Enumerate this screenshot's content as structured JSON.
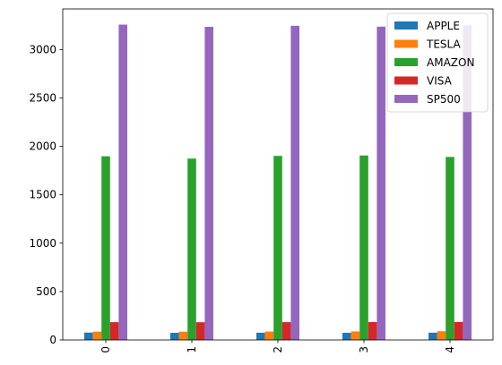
{
  "chart_data": {
    "type": "bar",
    "title": "",
    "xlabel": "",
    "ylabel": "",
    "categories": [
      "0",
      "1",
      "2",
      "3",
      "4"
    ],
    "ylim": [
      0,
      3420
    ],
    "yticks": [
      0,
      500,
      1000,
      1500,
      2000,
      2500,
      3000
    ],
    "x_tick_rotation": "vertical",
    "grid": false,
    "legend_position": "top-right",
    "series": [
      {
        "name": "APPLE",
        "color": "#1f77b4",
        "values": [
          76,
          74,
          75,
          74,
          75
        ]
      },
      {
        "name": "TESLA",
        "color": "#ff7f0e",
        "values": [
          86,
          86,
          87,
          88,
          90
        ]
      },
      {
        "name": "AMAZON",
        "color": "#2ca02c",
        "values": [
          1898,
          1874,
          1902,
          1906,
          1891
        ]
      },
      {
        "name": "VISA",
        "color": "#d62728",
        "values": [
          184,
          183,
          184,
          185,
          186
        ]
      },
      {
        "name": "SP500",
        "color": "#9467bd",
        "values": [
          3258,
          3235,
          3246,
          3237,
          3253
        ]
      }
    ]
  }
}
